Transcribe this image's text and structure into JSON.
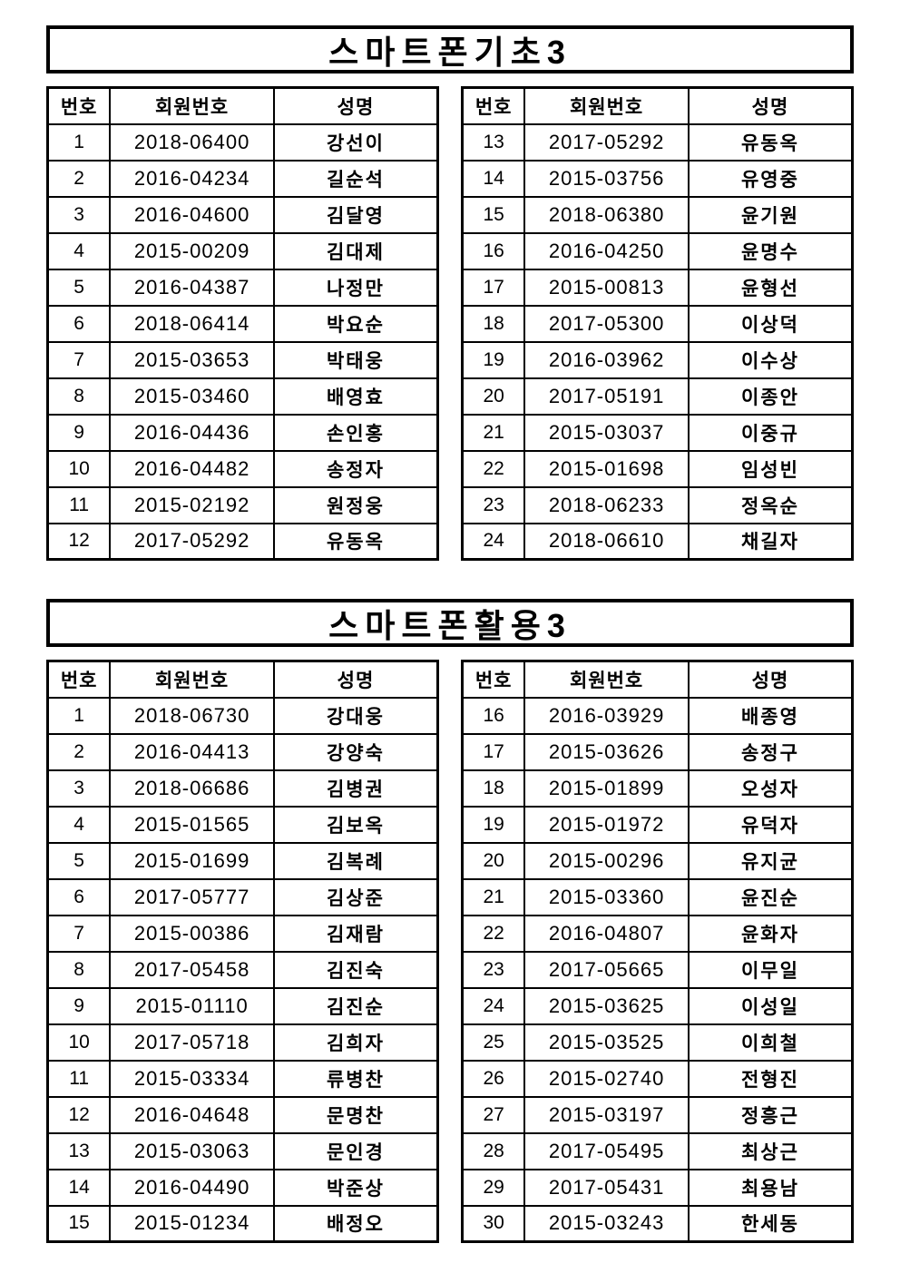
{
  "page": {
    "background": "#ffffff",
    "text_color": "#000000",
    "border_color": "#000000"
  },
  "sections": [
    {
      "title": "스마트폰기초3",
      "columns": [
        "번호",
        "회원번호",
        "성명"
      ],
      "left_rows": [
        [
          "1",
          "2018-06400",
          "강선이"
        ],
        [
          "2",
          "2016-04234",
          "길순석"
        ],
        [
          "3",
          "2016-04600",
          "김달영"
        ],
        [
          "4",
          "2015-00209",
          "김대제"
        ],
        [
          "5",
          "2016-04387",
          "나정만"
        ],
        [
          "6",
          "2018-06414",
          "박요순"
        ],
        [
          "7",
          "2015-03653",
          "박태웅"
        ],
        [
          "8",
          "2015-03460",
          "배영효"
        ],
        [
          "9",
          "2016-04436",
          "손인홍"
        ],
        [
          "10",
          "2016-04482",
          "송정자"
        ],
        [
          "11",
          "2015-02192",
          "원정웅"
        ],
        [
          "12",
          "2017-05292",
          "유동옥"
        ]
      ],
      "right_rows": [
        [
          "13",
          "2017-05292",
          "유동옥"
        ],
        [
          "14",
          "2015-03756",
          "유영중"
        ],
        [
          "15",
          "2018-06380",
          "윤기원"
        ],
        [
          "16",
          "2016-04250",
          "윤명수"
        ],
        [
          "17",
          "2015-00813",
          "윤형선"
        ],
        [
          "18",
          "2017-05300",
          "이상덕"
        ],
        [
          "19",
          "2016-03962",
          "이수상"
        ],
        [
          "20",
          "2017-05191",
          "이종안"
        ],
        [
          "21",
          "2015-03037",
          "이중규"
        ],
        [
          "22",
          "2015-01698",
          "임성빈"
        ],
        [
          "23",
          "2018-06233",
          "정옥순"
        ],
        [
          "24",
          "2018-06610",
          "채길자"
        ]
      ]
    },
    {
      "title": "스마트폰활용3",
      "columns": [
        "번호",
        "회원번호",
        "성명"
      ],
      "left_rows": [
        [
          "1",
          "2018-06730",
          "강대웅"
        ],
        [
          "2",
          "2016-04413",
          "강양숙"
        ],
        [
          "3",
          "2018-06686",
          "김병권"
        ],
        [
          "4",
          "2015-01565",
          "김보옥"
        ],
        [
          "5",
          "2015-01699",
          "김복례"
        ],
        [
          "6",
          "2017-05777",
          "김상준"
        ],
        [
          "7",
          "2015-00386",
          "김재람"
        ],
        [
          "8",
          "2017-05458",
          "김진숙"
        ],
        [
          "9",
          "2015-01110",
          "김진순"
        ],
        [
          "10",
          "2017-05718",
          "김희자"
        ],
        [
          "11",
          "2015-03334",
          "류병찬"
        ],
        [
          "12",
          "2016-04648",
          "문명찬"
        ],
        [
          "13",
          "2015-03063",
          "문인경"
        ],
        [
          "14",
          "2016-04490",
          "박준상"
        ],
        [
          "15",
          "2015-01234",
          "배정오"
        ]
      ],
      "right_rows": [
        [
          "16",
          "2016-03929",
          "배종영"
        ],
        [
          "17",
          "2015-03626",
          "송정구"
        ],
        [
          "18",
          "2015-01899",
          "오성자"
        ],
        [
          "19",
          "2015-01972",
          "유덕자"
        ],
        [
          "20",
          "2015-00296",
          "유지균"
        ],
        [
          "21",
          "2015-03360",
          "윤진순"
        ],
        [
          "22",
          "2016-04807",
          "윤화자"
        ],
        [
          "23",
          "2017-05665",
          "이무일"
        ],
        [
          "24",
          "2015-03625",
          "이성일"
        ],
        [
          "25",
          "2015-03525",
          "이희철"
        ],
        [
          "26",
          "2015-02740",
          "전형진"
        ],
        [
          "27",
          "2015-03197",
          "정흥근"
        ],
        [
          "28",
          "2017-05495",
          "최상근"
        ],
        [
          "29",
          "2017-05431",
          "최용남"
        ],
        [
          "30",
          "2015-03243",
          "한세동"
        ]
      ]
    }
  ]
}
